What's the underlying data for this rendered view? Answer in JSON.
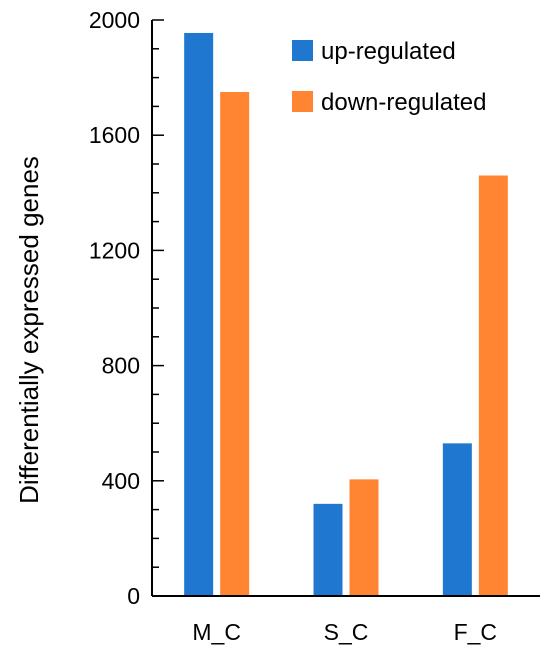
{
  "chart_data": {
    "type": "bar",
    "title": "",
    "xlabel": "",
    "ylabel": "Differentially expressed genes",
    "categories": [
      "M_C",
      "S_C",
      "F_C"
    ],
    "series": [
      {
        "name": "up-regulated",
        "color": "#1f77d0",
        "values": [
          1955,
          320,
          530
        ]
      },
      {
        "name": "down-regulated",
        "color": "#ff8533",
        "values": [
          1750,
          405,
          1460
        ]
      }
    ],
    "ylim": [
      0,
      2000
    ],
    "yticks": [
      "0",
      "400",
      "800",
      "1200",
      "1600",
      "2000"
    ],
    "ytick_values": [
      0,
      400,
      800,
      1200,
      1600,
      2000
    ],
    "minor_tick_step": 100,
    "grid": false,
    "legend_position": "top-right"
  }
}
